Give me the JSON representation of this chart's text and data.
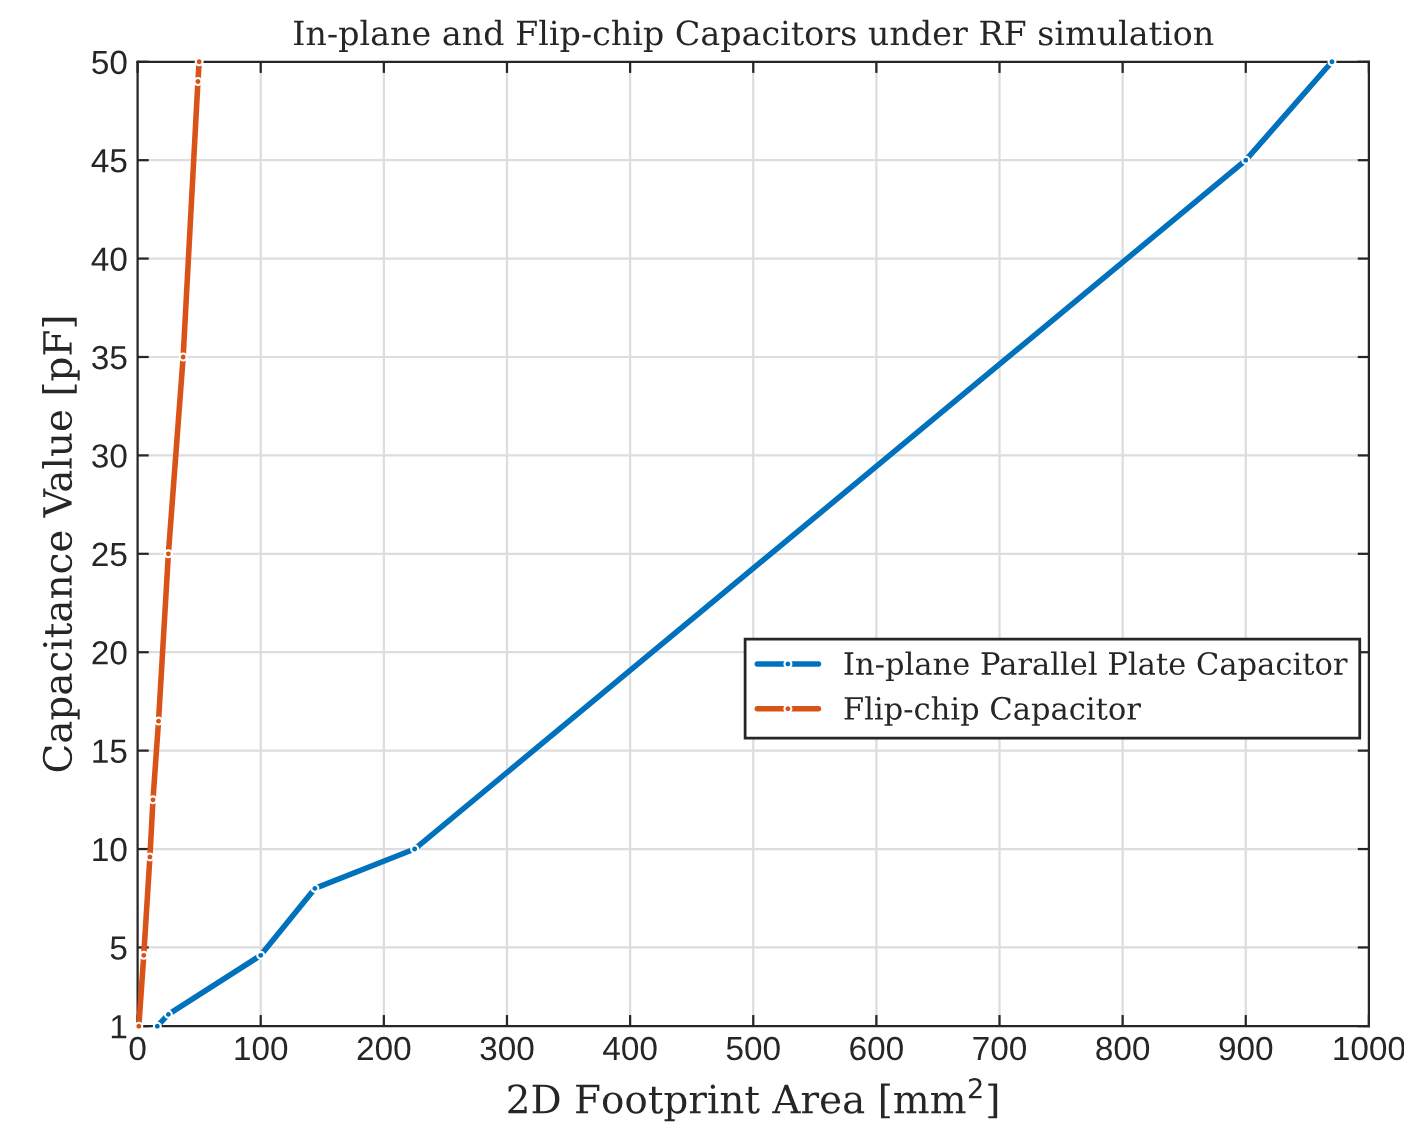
{
  "chart_data": {
    "type": "line",
    "title": "In-plane and Flip-chip Capacitors under RF simulation",
    "xlabel": "2D Footprint Area [mm$^{2}$]",
    "ylabel": "Capacitance Value [pF]",
    "xlim": [
      0,
      1000
    ],
    "xticks": [
      0,
      100,
      200,
      300,
      400,
      500,
      600,
      700,
      800,
      900,
      1000
    ],
    "ylim": [
      1,
      50
    ],
    "yticks": [
      1,
      5,
      10,
      15,
      20,
      25,
      30,
      35,
      40,
      45,
      50
    ],
    "grid": true,
    "legend": "right",
    "marker": "circle",
    "line_style": "solid",
    "series": [
      {
        "name": "In-plane Parallel Plate Capacitor",
        "color": "#0072bd",
        "x": [
          16,
          25,
          100,
          144,
          225,
          900,
          970
        ],
        "values": [
          1,
          1.6,
          4.6,
          8,
          10,
          45,
          50
        ]
      },
      {
        "name": "Flip-chip Capacitor",
        "color": "#d95319",
        "x": [
          1,
          5,
          10,
          12.5,
          17,
          25,
          37,
          49,
          50
        ],
        "values": [
          1,
          4.6,
          9.6,
          12.5,
          16.5,
          25,
          35,
          49,
          50
        ]
      }
    ]
  }
}
